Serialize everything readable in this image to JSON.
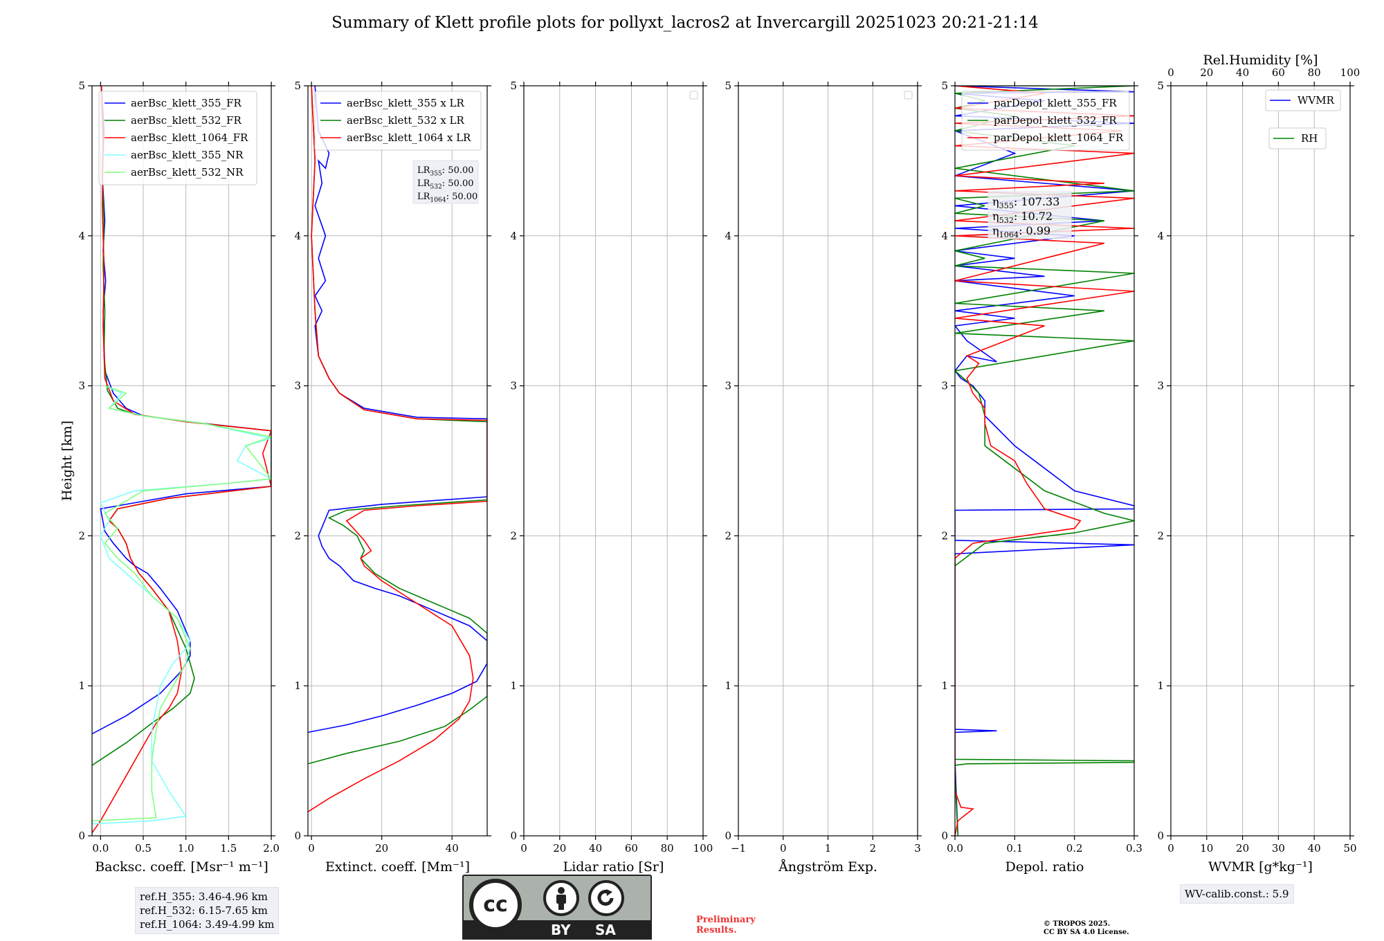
{
  "title": "Summary of Klett profile plots for pollyxt_lacros2 at Invercargill 20251023 20:21-21:14",
  "ylabel": "Height [km]",
  "colors": {
    "blue": "#0000ff",
    "green": "#008000",
    "red": "#ff0000",
    "cyan": "#7fffff",
    "lightgreen": "#7fff7f"
  },
  "chart_data": [
    {
      "id": "backscatter",
      "type": "line",
      "xlabel": "Backsc. coeff. [Msr⁻¹ m⁻¹]",
      "xlim": [
        -0.1,
        2.0
      ],
      "ylim": [
        0,
        5
      ],
      "xticks": [
        "0.0",
        "0.5",
        "1.0",
        "1.5",
        "2.0"
      ],
      "yticks": [
        "0",
        "1",
        "2",
        "3",
        "4",
        "5"
      ],
      "series": [
        {
          "name": "aerBsc_klett_355_FR",
          "color": "blue",
          "x": [
            -0.1,
            0.3,
            0.7,
            0.95,
            1.05,
            1.05,
            0.9,
            0.7,
            0.55,
            0.4,
            0.3,
            0.15,
            0.05,
            0.0,
            0.2,
            1.0,
            2.0,
            2.0,
            1.2,
            0.5,
            0.3,
            0.15,
            0.05,
            0.03,
            0.06,
            0.03,
            0.05,
            0.02,
            0.04,
            0.01
          ],
          "y": [
            0.68,
            0.8,
            0.95,
            1.1,
            1.2,
            1.3,
            1.5,
            1.65,
            1.75,
            1.8,
            1.85,
            1.95,
            2.03,
            2.18,
            2.2,
            2.28,
            2.33,
            2.7,
            2.75,
            2.8,
            2.85,
            2.95,
            3.1,
            3.5,
            3.7,
            3.9,
            4.1,
            4.4,
            4.7,
            5.0
          ]
        },
        {
          "name": "aerBsc_klett_532_FR",
          "color": "green",
          "x": [
            -0.1,
            0.3,
            0.6,
            0.85,
            1.05,
            1.1,
            1.0,
            0.8,
            0.6,
            0.45,
            0.35,
            0.3,
            0.2,
            0.1,
            0.2,
            0.8,
            2.0,
            2.0,
            1.0,
            0.4,
            0.2,
            0.08,
            0.04,
            0.05,
            0.03,
            0.04,
            0.02,
            0.03,
            0.01
          ],
          "y": [
            0.47,
            0.62,
            0.75,
            0.85,
            0.95,
            1.05,
            1.25,
            1.5,
            1.65,
            1.75,
            1.85,
            1.95,
            2.05,
            2.1,
            2.18,
            2.25,
            2.33,
            2.7,
            2.76,
            2.81,
            2.85,
            2.97,
            3.2,
            3.5,
            3.8,
            4.1,
            4.4,
            4.7,
            5.0
          ]
        },
        {
          "name": "aerBsc_klett_1064_FR",
          "color": "red",
          "x": [
            -0.1,
            0.0,
            0.3,
            0.5,
            0.65,
            0.8,
            0.9,
            0.95,
            0.9,
            0.8,
            0.6,
            0.45,
            0.35,
            0.3,
            0.2,
            0.1,
            0.2,
            0.8,
            2.0,
            1.9,
            2.0,
            1.0,
            0.4,
            0.15,
            0.05,
            0.03,
            0.04,
            0.02,
            0.03,
            0.01
          ],
          "y": [
            0.02,
            0.1,
            0.4,
            0.6,
            0.75,
            0.85,
            0.95,
            1.1,
            1.3,
            1.5,
            1.65,
            1.75,
            1.85,
            1.95,
            2.05,
            2.1,
            2.18,
            2.25,
            2.33,
            2.55,
            2.7,
            2.76,
            2.81,
            2.9,
            3.05,
            3.4,
            3.8,
            4.2,
            4.6,
            5.0
          ]
        },
        {
          "name": "aerBsc_klett_355_NR",
          "color": "cyan",
          "x": [
            -0.1,
            0.6,
            1.0,
            0.8,
            0.6,
            0.6,
            0.65,
            0.7,
            0.85,
            1.0,
            1.05,
            0.9,
            0.6,
            0.3,
            0.1,
            0.0,
            0.1,
            0.0,
            0.4,
            1.5,
            2.0,
            1.6,
            1.7,
            2.0,
            1.2,
            0.5,
            0.1,
            0.25,
            0.05
          ],
          "y": [
            0.08,
            0.1,
            0.13,
            0.3,
            0.5,
            0.7,
            0.85,
            1.0,
            1.15,
            1.25,
            1.3,
            1.45,
            1.6,
            1.75,
            1.85,
            2.0,
            2.1,
            2.22,
            2.3,
            2.35,
            2.38,
            2.5,
            2.6,
            2.65,
            2.75,
            2.8,
            2.85,
            2.95,
            3.0
          ]
        },
        {
          "name": "aerBsc_klett_532_NR",
          "color": "lightgreen",
          "x": [
            -0.1,
            0.65,
            0.6,
            0.6,
            0.65,
            0.7,
            0.85,
            1.0,
            1.05,
            0.9,
            0.6,
            0.4,
            0.2,
            0.05,
            0.2,
            0.05,
            0.5,
            1.5,
            2.0,
            1.7,
            2.0,
            1.2,
            0.5,
            0.1,
            0.3,
            0.05
          ],
          "y": [
            0.1,
            0.12,
            0.3,
            0.5,
            0.7,
            0.85,
            1.0,
            1.15,
            1.25,
            1.45,
            1.6,
            1.75,
            1.85,
            1.95,
            2.05,
            2.15,
            2.3,
            2.35,
            2.38,
            2.6,
            2.66,
            2.75,
            2.8,
            2.85,
            2.95,
            3.0
          ]
        }
      ]
    },
    {
      "id": "extinction",
      "type": "line",
      "xlabel": "Extinct. coeff. [Mm⁻¹]",
      "xlim": [
        -1,
        50
      ],
      "ylim": [
        0,
        5
      ],
      "xticks": [
        "0",
        "20",
        "40"
      ],
      "yticks": [
        "0",
        "1",
        "2",
        "3",
        "4",
        "5"
      ],
      "annotation": [
        "LR355: 50.00",
        "LR532: 50.00",
        "LR1064: 50.00"
      ],
      "series": [
        {
          "name": "aerBsc_klett_355 x LR",
          "color": "blue",
          "x": [
            -1,
            10,
            20,
            30,
            40,
            47,
            50,
            50,
            45,
            35,
            25,
            18,
            12,
            8,
            5,
            3,
            2,
            5,
            20,
            50,
            50,
            30,
            15,
            8,
            5,
            2,
            1,
            3,
            1,
            4,
            2,
            4,
            1,
            3,
            2,
            4,
            5,
            2,
            1
          ],
          "y": [
            0.69,
            0.74,
            0.8,
            0.87,
            0.95,
            1.03,
            1.15,
            1.3,
            1.4,
            1.5,
            1.6,
            1.65,
            1.7,
            1.8,
            1.85,
            1.93,
            2.0,
            2.17,
            2.21,
            2.26,
            2.78,
            2.79,
            2.85,
            2.95,
            3.05,
            3.2,
            3.4,
            3.5,
            3.6,
            3.7,
            3.85,
            4.0,
            4.2,
            4.35,
            4.5,
            4.45,
            4.55,
            4.7,
            5.0
          ]
        },
        {
          "name": "aerBsc_klett_532 x LR",
          "color": "green",
          "x": [
            -1,
            10,
            25,
            38,
            45,
            50,
            50,
            45,
            35,
            25,
            18,
            14,
            15,
            13,
            9,
            5,
            10,
            25,
            50,
            50,
            30,
            15,
            8,
            5,
            2,
            1,
            0,
            1,
            0
          ],
          "y": [
            0.48,
            0.55,
            0.63,
            0.73,
            0.84,
            0.93,
            1.35,
            1.45,
            1.55,
            1.65,
            1.75,
            1.85,
            1.9,
            2.0,
            2.07,
            2.12,
            2.17,
            2.2,
            2.24,
            2.76,
            2.78,
            2.84,
            2.95,
            3.05,
            3.2,
            3.5,
            4.0,
            4.5,
            5.0
          ]
        },
        {
          "name": "aerBsc_klett_1064 x LR",
          "color": "red",
          "x": [
            -1,
            5,
            15,
            25,
            35,
            42,
            45,
            46,
            45,
            40,
            30,
            20,
            15,
            14,
            17,
            15,
            10,
            15,
            30,
            50,
            50,
            30,
            15,
            8,
            5,
            2,
            1,
            0,
            1,
            0
          ],
          "y": [
            0.16,
            0.25,
            0.38,
            0.5,
            0.64,
            0.78,
            0.9,
            1.05,
            1.2,
            1.4,
            1.55,
            1.7,
            1.8,
            1.85,
            1.9,
            1.97,
            2.1,
            2.17,
            2.2,
            2.23,
            2.77,
            2.78,
            2.84,
            2.95,
            3.05,
            3.2,
            3.5,
            4.0,
            4.5,
            5.0
          ]
        }
      ]
    },
    {
      "id": "lidarratio",
      "type": "line",
      "xlabel": "Lidar ratio [Sr]",
      "xlim": [
        0,
        100
      ],
      "ylim": [
        0,
        5
      ],
      "xticks": [
        "0",
        "20",
        "40",
        "60",
        "80",
        "100"
      ],
      "yticks": [
        "0",
        "1",
        "2",
        "3",
        "4",
        "5"
      ],
      "series": []
    },
    {
      "id": "angstrom",
      "type": "line",
      "xlabel": "Ångström Exp.",
      "xlim": [
        -1,
        3
      ],
      "ylim": [
        0,
        5
      ],
      "xticks": [
        "−1",
        "0",
        "1",
        "2",
        "3"
      ],
      "yticks": [
        "0",
        "1",
        "2",
        "3",
        "4",
        "5"
      ],
      "series": []
    },
    {
      "id": "depol",
      "type": "line",
      "xlabel": "Depol. ratio",
      "xlim": [
        0,
        0.3
      ],
      "ylim": [
        0,
        5
      ],
      "xticks": [
        "0.0",
        "0.1",
        "0.2",
        "0.3"
      ],
      "yticks": [
        "0",
        "1",
        "2",
        "3",
        "4",
        "5"
      ],
      "annotation": [
        "η355: 107.33",
        "η532: 10.72",
        "η1064: 0.99"
      ],
      "series": [
        {
          "name": "parDepol_klett_355_FR",
          "color": "blue",
          "x": [
            0.005,
            0.0,
            0.0,
            0.07,
            0.0,
            0.0,
            0.0,
            0.3,
            0.0,
            0.0,
            0.3,
            0.3,
            0.2,
            0.15,
            0.1,
            0.05,
            0.05,
            0.04,
            0.03,
            0.01,
            0.0,
            0.02,
            0.07,
            0.02,
            0.0,
            0.1,
            0.0,
            0.2,
            0.0,
            0.15,
            0.0,
            0.1,
            0.0,
            0.2,
            0.0,
            0.25,
            0.0,
            0.3,
            0.0,
            0.1,
            0.0,
            0.3,
            0.0,
            0.15,
            0.0,
            0.3,
            0.0
          ],
          "y": [
            0.0,
            0.5,
            0.69,
            0.7,
            0.71,
            1.8,
            1.88,
            1.94,
            1.97,
            2.17,
            2.18,
            2.2,
            2.3,
            2.45,
            2.6,
            2.8,
            2.9,
            2.95,
            3.0,
            3.05,
            3.1,
            3.2,
            3.16,
            3.3,
            3.4,
            3.45,
            3.5,
            3.6,
            3.7,
            3.73,
            3.8,
            3.85,
            3.9,
            4.0,
            4.05,
            4.1,
            4.2,
            4.3,
            4.4,
            4.55,
            4.7,
            4.75,
            4.8,
            4.9,
            4.95,
            4.96,
            5.0
          ]
        },
        {
          "name": "parDepol_klett_532_FR",
          "color": "green",
          "x": [
            0.005,
            0.0,
            0.0,
            0.02,
            0.3,
            0.3,
            0.0,
            0.0,
            0.05,
            0.2,
            0.3,
            0.25,
            0.15,
            0.1,
            0.05,
            0.05,
            0.04,
            0.02,
            0.0,
            0.3,
            0.0,
            0.25,
            0.0,
            0.3,
            0.0,
            0.05,
            0.0,
            0.25,
            0.0,
            0.05,
            0.0,
            0.3,
            0.0,
            0.2,
            0.0,
            0.1,
            0.0,
            0.05,
            0.0,
            0.3,
            0.0
          ],
          "y": [
            0.0,
            0.4,
            0.47,
            0.48,
            0.49,
            0.5,
            0.51,
            1.8,
            1.95,
            2.02,
            2.1,
            2.15,
            2.3,
            2.45,
            2.6,
            2.8,
            2.95,
            3.03,
            3.1,
            3.3,
            3.35,
            3.5,
            3.55,
            3.75,
            3.8,
            3.85,
            3.9,
            4.1,
            4.15,
            4.2,
            4.25,
            4.3,
            4.45,
            4.6,
            4.7,
            4.8,
            4.85,
            4.9,
            4.95,
            5.0,
            5.0
          ]
        },
        {
          "name": "parDepol_klett_1064_FR",
          "color": "red",
          "x": [
            0.0,
            0.005,
            0.03,
            0.01,
            0.0,
            0.0,
            0.03,
            0.2,
            0.21,
            0.15,
            0.12,
            0.1,
            0.06,
            0.05,
            0.05,
            0.03,
            0.02,
            0.04,
            0.02,
            0.15,
            0.0,
            0.3,
            0.0,
            0.25,
            0.0,
            0.3,
            0.0,
            0.3,
            0.0,
            0.25,
            0.0,
            0.3,
            0.0,
            0.28,
            0.0,
            0.3,
            0.0,
            0.15,
            0.0
          ],
          "y": [
            0.0,
            0.1,
            0.18,
            0.19,
            0.3,
            1.85,
            1.95,
            2.05,
            2.1,
            2.18,
            2.35,
            2.5,
            2.6,
            2.75,
            2.85,
            2.95,
            3.05,
            3.15,
            3.2,
            3.4,
            3.45,
            3.63,
            3.7,
            3.95,
            4.0,
            4.05,
            4.1,
            4.25,
            4.3,
            4.35,
            4.4,
            4.55,
            4.6,
            4.7,
            4.75,
            4.8,
            4.85,
            4.95,
            5.0
          ]
        }
      ]
    },
    {
      "id": "wvmr",
      "type": "line",
      "xlabel": "WVMR [g*kg⁻¹]",
      "xlim": [
        0,
        50
      ],
      "ylim": [
        0,
        5
      ],
      "xticks": [
        "0",
        "10",
        "20",
        "30",
        "40",
        "50"
      ],
      "yticks": [
        "0",
        "1",
        "2",
        "3",
        "4",
        "5"
      ],
      "x2label": "Rel.Humidity [%]",
      "x2ticks": [
        "0",
        "20",
        "40",
        "60",
        "80",
        "100"
      ],
      "series": [
        {
          "name": "WVMR",
          "color": "blue",
          "x": [],
          "y": []
        },
        {
          "name": "RH",
          "color": "green",
          "x": [],
          "y": []
        }
      ]
    }
  ],
  "refheights": [
    "ref.H_355: 3.46-4.96 km",
    "ref.H_532: 6.15-7.65 km",
    "ref.H_1064: 3.49-4.99 km"
  ],
  "wvcalib": "WV-calib.const.: 5.9",
  "preliminary": [
    "Preliminary",
    "Results."
  ],
  "copyright": [
    "© TROPOS 2025.",
    "CC BY SA 4.0 License."
  ],
  "license": {
    "by": "BY",
    "sa": "SA",
    "cc": "cc"
  }
}
